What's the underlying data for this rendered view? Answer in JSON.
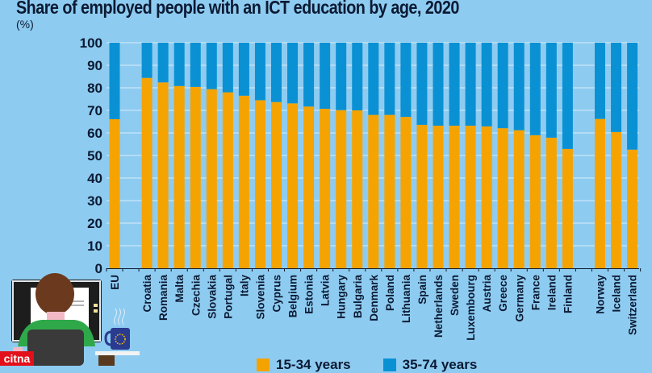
{
  "chart_data": {
    "type": "bar",
    "stacked": true,
    "title": "Share of employed people with an ICT education by age, 2020",
    "unit_label": "(%)",
    "xlabel": "",
    "ylabel": "",
    "ylim": [
      0,
      100
    ],
    "yticks": [
      0,
      10,
      20,
      30,
      40,
      50,
      60,
      70,
      80,
      90,
      100
    ],
    "grid": true,
    "legend_position": "bottom",
    "categories": [
      "EU",
      "",
      "Croatia",
      "Romania",
      "Malta",
      "Czechia",
      "Slovakia",
      "Portugal",
      "Italy",
      "Slovenia",
      "Cyprus",
      "Belgium",
      "Estonia",
      "Latvia",
      "Hungary",
      "Bulgaria",
      "Denmark",
      "Poland",
      "Lithuania",
      "Spain",
      "Netherlands",
      "Sweden",
      "Luxembourg",
      "Austria",
      "Greece",
      "Germany",
      "France",
      "Ireland",
      "Finland",
      "",
      "Norway",
      "Iceland",
      "Switzerland"
    ],
    "series": [
      {
        "name": "15-34 years",
        "color": "#f5a300",
        "values": [
          66.1,
          null,
          84.4,
          82.4,
          80.8,
          80.4,
          79.4,
          78.0,
          76.5,
          74.5,
          73.7,
          73.1,
          71.7,
          70.7,
          70.1,
          70.0,
          68.0,
          68.0,
          67.1,
          63.6,
          63.2,
          63.2,
          63.2,
          62.9,
          62.1,
          61.2,
          59.0,
          57.9,
          52.9,
          null,
          66.2,
          60.4,
          52.6
        ]
      },
      {
        "name": "35-74 years",
        "color": "#0a91d4",
        "values": [
          33.9,
          null,
          15.6,
          17.6,
          19.2,
          19.6,
          20.6,
          22.0,
          23.5,
          25.5,
          26.3,
          26.9,
          28.3,
          29.3,
          29.9,
          30.0,
          32.0,
          32.0,
          32.9,
          36.4,
          36.8,
          36.8,
          36.8,
          37.1,
          37.9,
          38.8,
          41.0,
          42.1,
          47.1,
          null,
          33.8,
          39.6,
          47.4
        ]
      }
    ]
  },
  "legend": [
    {
      "label": "15-34 years",
      "color": "#f5a300"
    },
    {
      "label": "35-74 years",
      "color": "#0a91d4"
    }
  ],
  "watermark": {
    "text": "citna",
    "color": "#e3101b"
  },
  "colors": {
    "background": "#8ecbf0",
    "grid": "#c9e6f8",
    "text": "#0b1a33"
  }
}
